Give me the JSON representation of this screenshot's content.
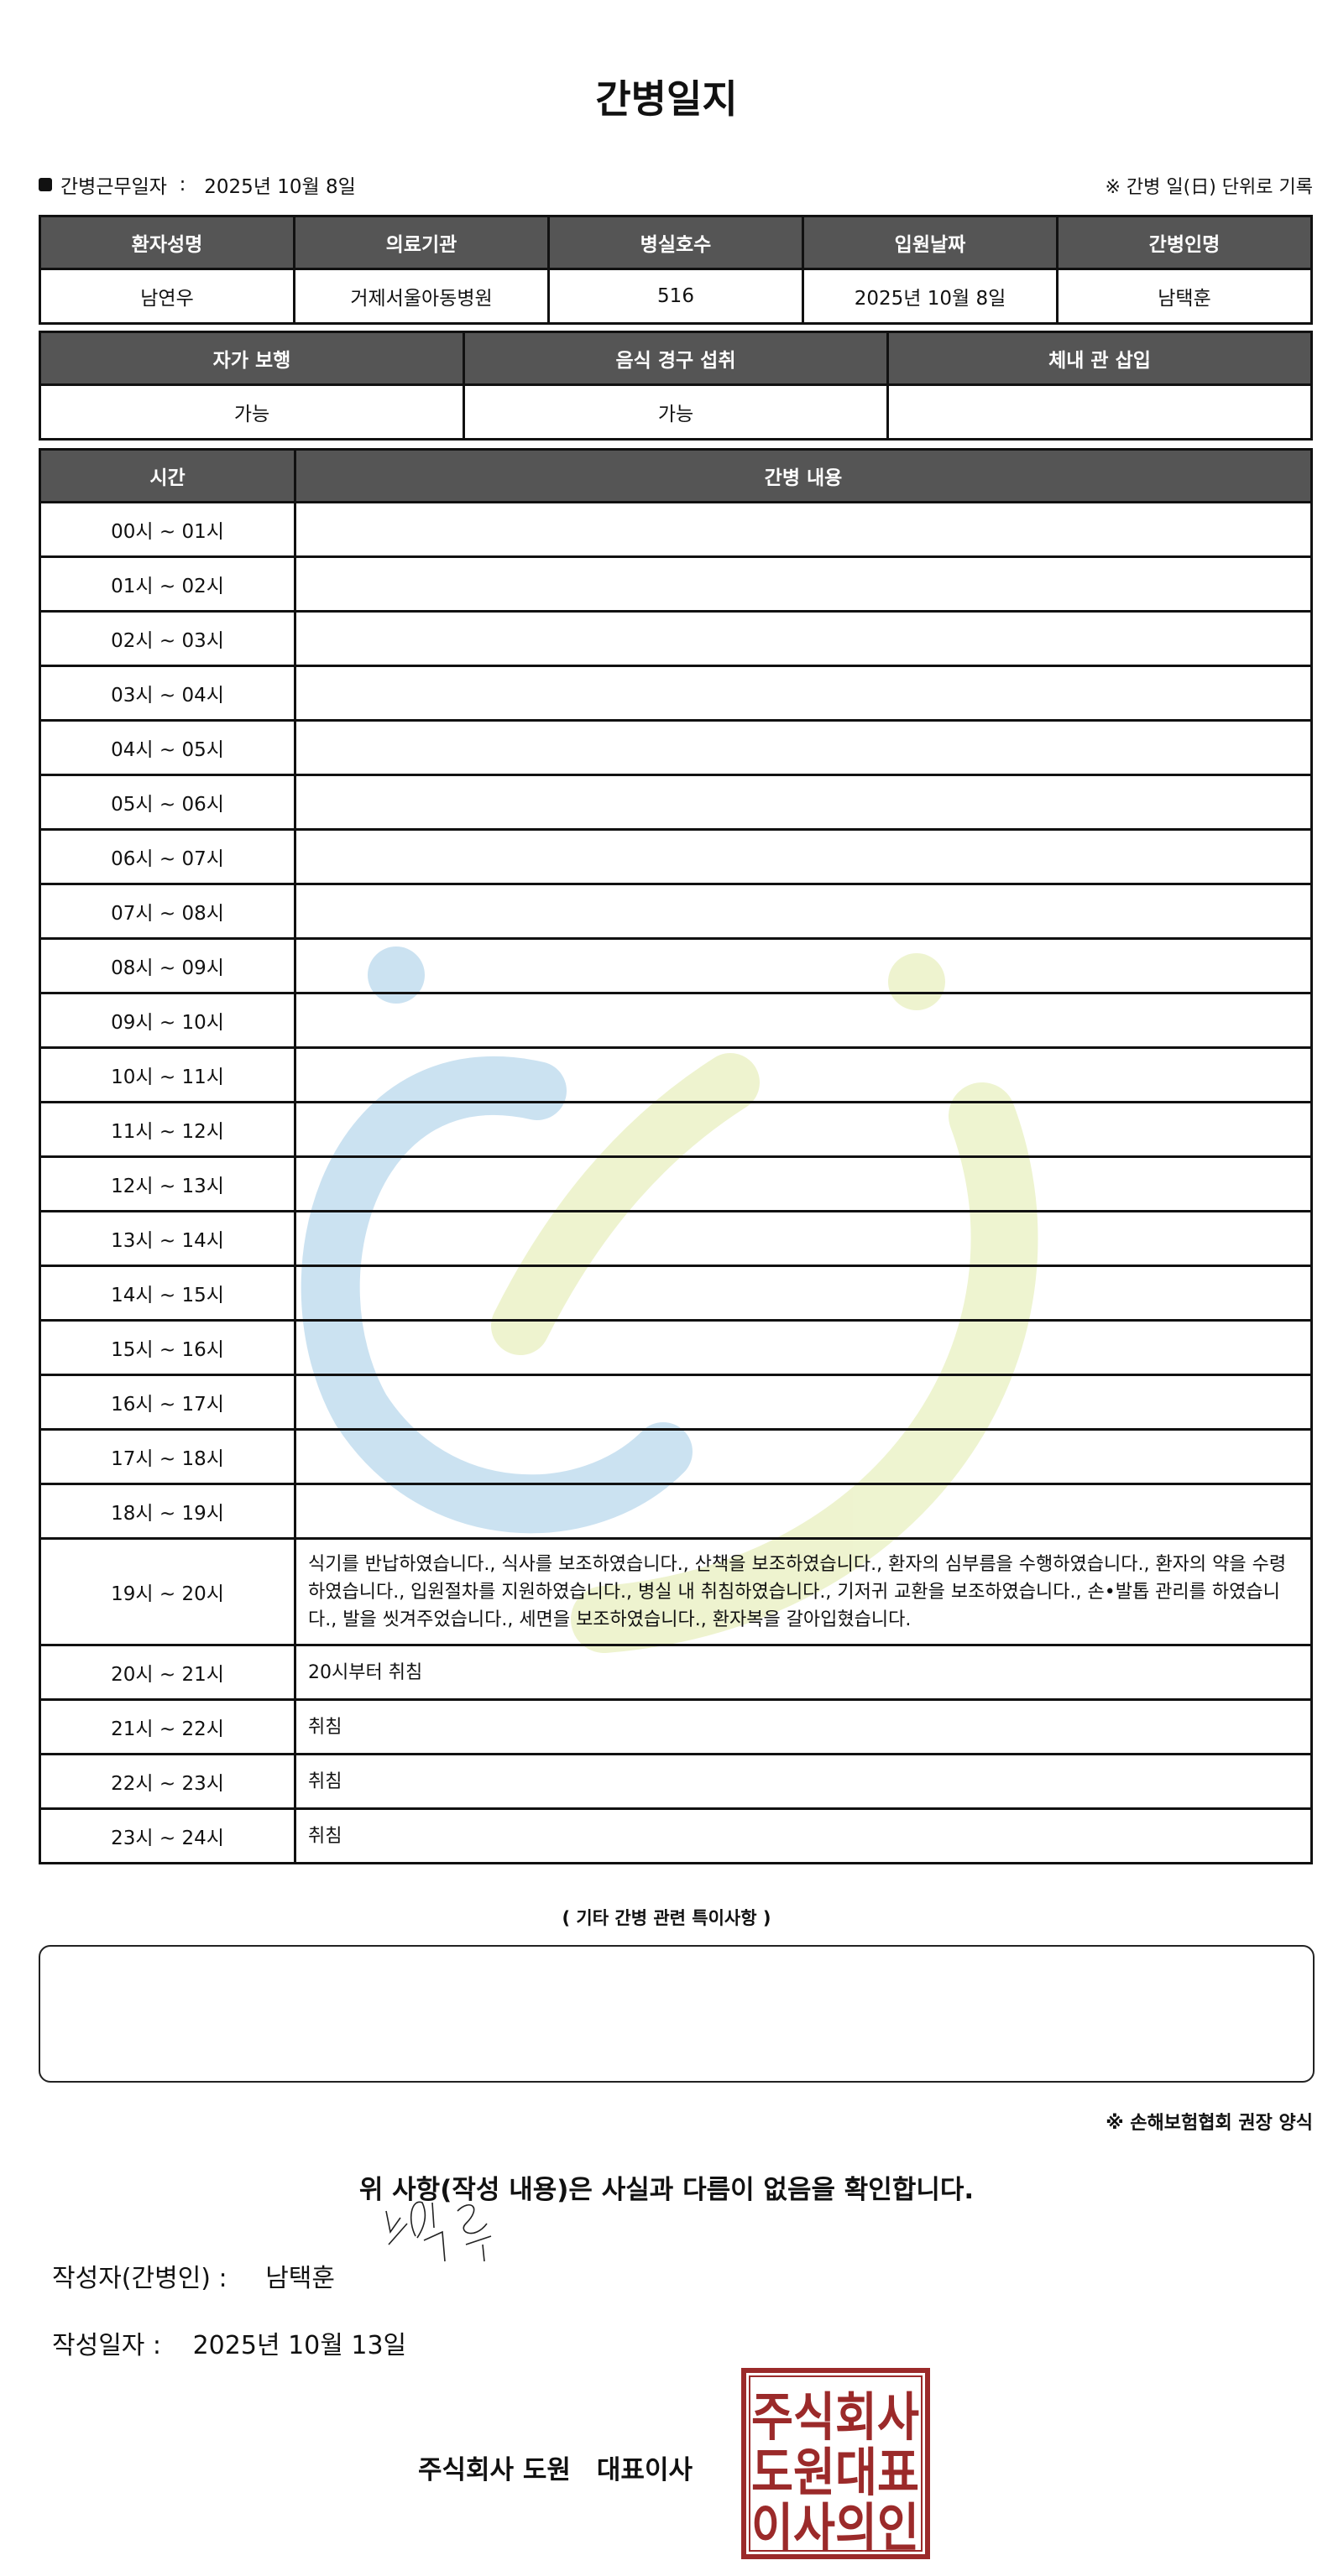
{
  "title": "간병일지",
  "info": {
    "label": "간병근무일자",
    "separator": ":",
    "date": "2025년 10월 8일",
    "note": "※ 간병 일(日) 단위로 기록"
  },
  "patient_table": {
    "headers": [
      "환자성명",
      "의료기관",
      "병실호수",
      "입원날짜",
      "간병인명"
    ],
    "values": [
      "남연우",
      "거제서울아동병원",
      "516",
      "2025년 10월 8일",
      "남택훈"
    ]
  },
  "status_table": {
    "headers": [
      "자가 보행",
      "음식 경구 섭취",
      "체내 관 삽입"
    ],
    "values": [
      "가능",
      "가능",
      ""
    ]
  },
  "care_table": {
    "headers": [
      "시간",
      "간병 내용"
    ],
    "rows": [
      {
        "time": "00시 ~ 01시",
        "content": ""
      },
      {
        "time": "01시 ~ 02시",
        "content": ""
      },
      {
        "time": "02시 ~ 03시",
        "content": ""
      },
      {
        "time": "03시 ~ 04시",
        "content": ""
      },
      {
        "time": "04시 ~ 05시",
        "content": ""
      },
      {
        "time": "05시 ~ 06시",
        "content": ""
      },
      {
        "time": "06시 ~ 07시",
        "content": ""
      },
      {
        "time": "07시 ~ 08시",
        "content": ""
      },
      {
        "time": "08시 ~ 09시",
        "content": ""
      },
      {
        "time": "09시 ~ 10시",
        "content": ""
      },
      {
        "time": "10시 ~ 11시",
        "content": ""
      },
      {
        "time": "11시 ~ 12시",
        "content": ""
      },
      {
        "time": "12시 ~ 13시",
        "content": ""
      },
      {
        "time": "13시 ~ 14시",
        "content": ""
      },
      {
        "time": "14시 ~ 15시",
        "content": ""
      },
      {
        "time": "15시 ~ 16시",
        "content": ""
      },
      {
        "time": "16시 ~ 17시",
        "content": ""
      },
      {
        "time": "17시 ~ 18시",
        "content": ""
      },
      {
        "time": "18시 ~ 19시",
        "content": ""
      },
      {
        "time": "19시 ~ 20시",
        "content": "식기를 반납하였습니다., 식사를 보조하였습니다., 산책을 보조하였습니다., 환자의 심부름을 수행하였습니다., 환자의 약을 수령하였습니다., 입원절차를 지원하였습니다., 병실 내 취침하였습니다., 기저귀 교환을 보조하였습니다., 손•발톱 관리를 하였습니다., 발을 씻겨주었습니다., 세면을 보조하였습니다., 환자복을 갈아입혔습니다."
      },
      {
        "time": "20시 ~ 21시",
        "content": "20시부터 취침"
      },
      {
        "time": "21시 ~ 22시",
        "content": "취침"
      },
      {
        "time": "22시 ~ 23시",
        "content": "취침"
      },
      {
        "time": "23시 ~ 24시",
        "content": "취침"
      }
    ]
  },
  "special": {
    "label": "( 기타 간병 관련 특이사항 )",
    "content": ""
  },
  "form_note": "※ 손해보험협회 권장 양식",
  "confirm": "위 사항(작성 내용)은 사실과 다름이 없음을 확인합니다.",
  "writer": {
    "label": "작성자(간병인) :",
    "name": "남택훈"
  },
  "written_date": {
    "label": "작성일자 :",
    "date": "2025년 10월 13일"
  },
  "company": "주식회사 도원　대표이사",
  "stamp": {
    "text": [
      "주식회사",
      "도원대표",
      "이사의인"
    ],
    "color": "#9b2a2a"
  },
  "watermark_colors": {
    "blue": "#a9cfe8",
    "yellow": "#e3ecb0"
  }
}
